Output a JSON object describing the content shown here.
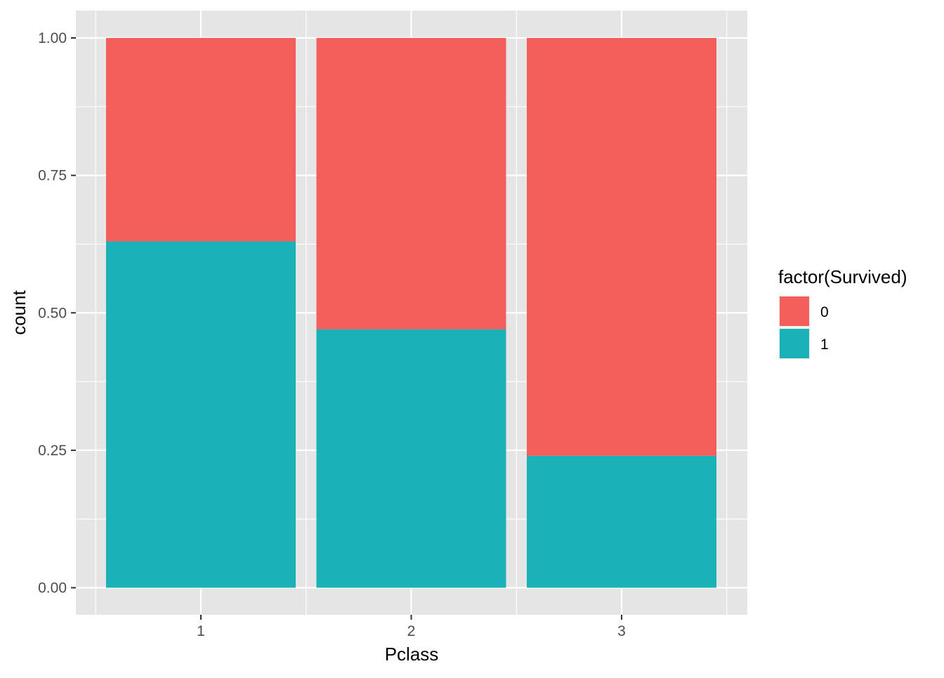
{
  "chart_data": {
    "type": "bar",
    "stacked": true,
    "categories": [
      "1",
      "2",
      "3"
    ],
    "series": [
      {
        "name": "0",
        "values": [
          0.37,
          0.53,
          0.76
        ]
      },
      {
        "name": "1",
        "values": [
          0.63,
          0.47,
          0.24
        ]
      }
    ],
    "xlabel": "Pclass",
    "ylabel": "count",
    "ylim": [
      -0.05,
      1.03
    ],
    "yticks": [
      0.0,
      0.25,
      0.5,
      0.75,
      1.0
    ],
    "ytick_labels": [
      "0.00",
      "0.25",
      "0.50",
      "0.75",
      "1.00"
    ],
    "legend": {
      "title": "factor(Survived)",
      "entries": [
        "0",
        "1"
      ],
      "placement": "right"
    },
    "grid": true,
    "colors": {
      "0": "#F35E5A",
      "1": "#19B2B7",
      "panel_background": "#E5E5E5",
      "grid": "#FFFFFF"
    }
  }
}
